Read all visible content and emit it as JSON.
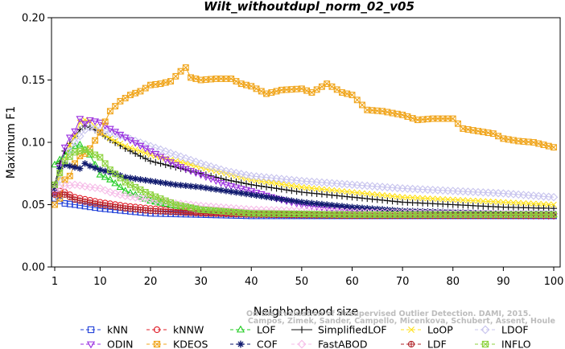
{
  "chart_data": {
    "type": "line",
    "title": "Wilt_withoutdupl_norm_02_v05",
    "xlabel": "Neighborhood size",
    "ylabel": "Maximum F1",
    "xlim": [
      1,
      100
    ],
    "ylim": [
      0,
      0.2
    ],
    "xticks": [
      "1",
      "10",
      "20",
      "30",
      "40",
      "50",
      "60",
      "70",
      "80",
      "90",
      "100"
    ],
    "yticks": [
      "0.00",
      "0.05",
      "0.10",
      "0.15",
      "0.20"
    ],
    "grid": false,
    "legend_position": "bottom",
    "credit_lines": [
      "Campos, Zimek, Sander, Campello, Micenkova, Schubert, Assent, Houle",
      "On the Evaluation of Unsupervised Outlier Detection. DAMI, 2015."
    ],
    "series": [
      {
        "name": "kNN",
        "color": "#1f3fd8",
        "marker": "square",
        "points": [
          [
            1,
            0.055
          ],
          [
            3,
            0.051
          ],
          [
            5,
            0.05
          ],
          [
            10,
            0.047
          ],
          [
            15,
            0.045
          ],
          [
            20,
            0.043
          ],
          [
            30,
            0.042
          ],
          [
            40,
            0.041
          ],
          [
            60,
            0.041
          ],
          [
            80,
            0.041
          ],
          [
            100,
            0.041
          ]
        ]
      },
      {
        "name": "kNNW",
        "color": "#e0202b",
        "marker": "circle",
        "points": [
          [
            1,
            0.062
          ],
          [
            3,
            0.06
          ],
          [
            5,
            0.056
          ],
          [
            10,
            0.052
          ],
          [
            15,
            0.049
          ],
          [
            20,
            0.047
          ],
          [
            30,
            0.044
          ],
          [
            40,
            0.043
          ],
          [
            60,
            0.042
          ],
          [
            80,
            0.042
          ],
          [
            100,
            0.042
          ]
        ]
      },
      {
        "name": "LOF",
        "color": "#22cc22",
        "marker": "triangle",
        "points": [
          [
            1,
            0.082
          ],
          [
            2,
            0.086
          ],
          [
            3,
            0.09
          ],
          [
            4,
            0.094
          ],
          [
            5,
            0.097
          ],
          [
            6,
            0.098
          ],
          [
            7,
            0.094
          ],
          [
            8,
            0.09
          ],
          [
            10,
            0.074
          ],
          [
            12,
            0.07
          ],
          [
            15,
            0.061
          ],
          [
            20,
            0.053
          ],
          [
            25,
            0.049
          ],
          [
            30,
            0.046
          ],
          [
            40,
            0.043
          ],
          [
            60,
            0.042
          ],
          [
            100,
            0.042
          ]
        ]
      },
      {
        "name": "SimplifiedLOF",
        "color": "#111111",
        "marker": "plus",
        "points": [
          [
            1,
            0.066
          ],
          [
            2,
            0.083
          ],
          [
            3,
            0.093
          ],
          [
            4,
            0.099
          ],
          [
            5,
            0.105
          ],
          [
            6,
            0.11
          ],
          [
            7,
            0.113
          ],
          [
            8,
            0.112
          ],
          [
            10,
            0.108
          ],
          [
            12,
            0.102
          ],
          [
            15,
            0.095
          ],
          [
            20,
            0.085
          ],
          [
            25,
            0.08
          ],
          [
            30,
            0.075
          ],
          [
            35,
            0.07
          ],
          [
            40,
            0.066
          ],
          [
            50,
            0.06
          ],
          [
            60,
            0.056
          ],
          [
            70,
            0.052
          ],
          [
            80,
            0.05
          ],
          [
            90,
            0.048
          ],
          [
            100,
            0.047
          ]
        ]
      },
      {
        "name": "LoOP",
        "color": "#ffe11a",
        "marker": "x",
        "points": [
          [
            1,
            0.063
          ],
          [
            2,
            0.072
          ],
          [
            3,
            0.085
          ],
          [
            4,
            0.098
          ],
          [
            5,
            0.105
          ],
          [
            6,
            0.116
          ],
          [
            7,
            0.118
          ],
          [
            8,
            0.117
          ],
          [
            10,
            0.108
          ],
          [
            12,
            0.103
          ],
          [
            15,
            0.097
          ],
          [
            20,
            0.09
          ],
          [
            25,
            0.085
          ],
          [
            30,
            0.08
          ],
          [
            35,
            0.075
          ],
          [
            40,
            0.07
          ],
          [
            50,
            0.064
          ],
          [
            60,
            0.06
          ],
          [
            70,
            0.056
          ],
          [
            80,
            0.054
          ],
          [
            90,
            0.052
          ],
          [
            100,
            0.05
          ]
        ]
      },
      {
        "name": "LDOF",
        "color": "#c8c4ee",
        "marker": "diamond",
        "points": [
          [
            1,
            0.06
          ],
          [
            2,
            0.07
          ],
          [
            3,
            0.083
          ],
          [
            4,
            0.093
          ],
          [
            5,
            0.1
          ],
          [
            6,
            0.105
          ],
          [
            7,
            0.11
          ],
          [
            8,
            0.112
          ],
          [
            10,
            0.11
          ],
          [
            12,
            0.108
          ],
          [
            15,
            0.104
          ],
          [
            20,
            0.097
          ],
          [
            25,
            0.09
          ],
          [
            30,
            0.083
          ],
          [
            35,
            0.077
          ],
          [
            40,
            0.073
          ],
          [
            50,
            0.069
          ],
          [
            60,
            0.066
          ],
          [
            70,
            0.063
          ],
          [
            80,
            0.061
          ],
          [
            90,
            0.059
          ],
          [
            100,
            0.056
          ]
        ]
      },
      {
        "name": "ODIN",
        "color": "#9a2de0",
        "marker": "triangle-down",
        "points": [
          [
            1,
            0.06
          ],
          [
            2,
            0.08
          ],
          [
            3,
            0.096
          ],
          [
            4,
            0.104
          ],
          [
            5,
            0.109
          ],
          [
            6,
            0.119
          ],
          [
            7,
            0.115
          ],
          [
            8,
            0.118
          ],
          [
            10,
            0.116
          ],
          [
            12,
            0.111
          ],
          [
            15,
            0.104
          ],
          [
            20,
            0.093
          ],
          [
            25,
            0.082
          ],
          [
            30,
            0.074
          ],
          [
            35,
            0.066
          ],
          [
            40,
            0.061
          ],
          [
            45,
            0.055
          ],
          [
            50,
            0.05
          ],
          [
            60,
            0.045
          ],
          [
            70,
            0.043
          ],
          [
            80,
            0.042
          ],
          [
            100,
            0.041
          ]
        ]
      },
      {
        "name": "KDEOS",
        "color": "#f0a51c",
        "marker": "boxed-x",
        "points": [
          [
            1,
            0.05
          ],
          [
            2,
            0.055
          ],
          [
            3,
            0.07
          ],
          [
            4,
            0.073
          ],
          [
            5,
            0.083
          ],
          [
            6,
            0.089
          ],
          [
            7,
            0.091
          ],
          [
            8,
            0.095
          ],
          [
            10,
            0.108
          ],
          [
            12,
            0.125
          ],
          [
            14,
            0.133
          ],
          [
            16,
            0.138
          ],
          [
            18,
            0.141
          ],
          [
            20,
            0.146
          ],
          [
            22,
            0.147
          ],
          [
            24,
            0.149
          ],
          [
            26,
            0.157
          ],
          [
            27,
            0.16
          ],
          [
            28,
            0.152
          ],
          [
            30,
            0.15
          ],
          [
            33,
            0.151
          ],
          [
            36,
            0.151
          ],
          [
            38,
            0.147
          ],
          [
            40,
            0.145
          ],
          [
            43,
            0.139
          ],
          [
            46,
            0.142
          ],
          [
            50,
            0.143
          ],
          [
            52,
            0.14
          ],
          [
            55,
            0.147
          ],
          [
            58,
            0.14
          ],
          [
            60,
            0.138
          ],
          [
            63,
            0.126
          ],
          [
            66,
            0.125
          ],
          [
            70,
            0.122
          ],
          [
            73,
            0.118
          ],
          [
            76,
            0.119
          ],
          [
            80,
            0.119
          ],
          [
            82,
            0.111
          ],
          [
            85,
            0.109
          ],
          [
            88,
            0.107
          ],
          [
            90,
            0.103
          ],
          [
            93,
            0.101
          ],
          [
            96,
            0.1
          ],
          [
            100,
            0.096
          ]
        ]
      },
      {
        "name": "COF",
        "color": "#101a6e",
        "marker": "star",
        "points": [
          [
            1,
            0.063
          ],
          [
            2,
            0.079
          ],
          [
            3,
            0.082
          ],
          [
            4,
            0.081
          ],
          [
            5,
            0.08
          ],
          [
            6,
            0.079
          ],
          [
            7,
            0.083
          ],
          [
            8,
            0.081
          ],
          [
            10,
            0.078
          ],
          [
            12,
            0.076
          ],
          [
            15,
            0.072
          ],
          [
            20,
            0.069
          ],
          [
            25,
            0.066
          ],
          [
            30,
            0.064
          ],
          [
            35,
            0.061
          ],
          [
            40,
            0.058
          ],
          [
            50,
            0.052
          ],
          [
            60,
            0.048
          ],
          [
            70,
            0.045
          ],
          [
            80,
            0.044
          ],
          [
            90,
            0.043
          ],
          [
            100,
            0.043
          ]
        ]
      },
      {
        "name": "FastABOD",
        "color": "#f6bde8",
        "marker": "diamond",
        "points": [
          [
            1,
            0.062
          ],
          [
            3,
            0.065
          ],
          [
            5,
            0.066
          ],
          [
            8,
            0.064
          ],
          [
            10,
            0.063
          ],
          [
            12,
            0.06
          ],
          [
            15,
            0.057
          ],
          [
            20,
            0.054
          ],
          [
            25,
            0.051
          ],
          [
            30,
            0.049
          ],
          [
            40,
            0.046
          ],
          [
            60,
            0.044
          ],
          [
            80,
            0.043
          ],
          [
            100,
            0.042
          ]
        ]
      },
      {
        "name": "LDF",
        "color": "#b0242a",
        "marker": "circle-plus",
        "points": [
          [
            1,
            0.058
          ],
          [
            3,
            0.058
          ],
          [
            5,
            0.054
          ],
          [
            10,
            0.05
          ],
          [
            15,
            0.047
          ],
          [
            20,
            0.045
          ],
          [
            30,
            0.043
          ],
          [
            40,
            0.042
          ],
          [
            60,
            0.041
          ],
          [
            80,
            0.041
          ],
          [
            100,
            0.041
          ]
        ]
      },
      {
        "name": "INFLO",
        "color": "#8cd23c",
        "marker": "boxed-x",
        "points": [
          [
            1,
            0.066
          ],
          [
            3,
            0.085
          ],
          [
            5,
            0.092
          ],
          [
            7,
            0.094
          ],
          [
            9,
            0.09
          ],
          [
            10,
            0.088
          ],
          [
            12,
            0.078
          ],
          [
            15,
            0.068
          ],
          [
            20,
            0.058
          ],
          [
            25,
            0.05
          ],
          [
            30,
            0.046
          ],
          [
            40,
            0.043
          ],
          [
            60,
            0.042
          ],
          [
            100,
            0.042
          ]
        ]
      }
    ]
  }
}
